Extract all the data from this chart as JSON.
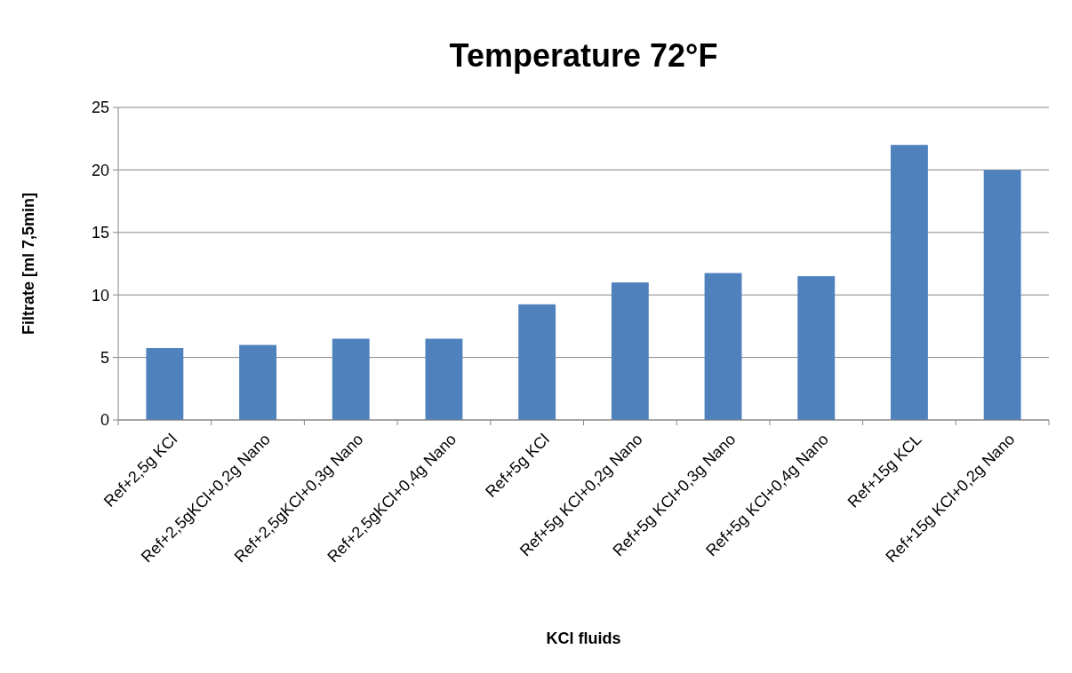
{
  "chart_data": {
    "type": "bar",
    "title": "Temperature 72°F",
    "xlabel": "KCl fluids",
    "ylabel": "Filtrate [ml 7,5min]",
    "categories": [
      "Ref+2,5g KCl",
      "Ref+2,5gKCl+0,2g Nano",
      "Ref+2,5gKCl+0,3g Nano",
      "Ref+2,5gKCl+0,4g Nano",
      "Ref+5g KCl",
      "Ref+5g KCl+0,2g Nano",
      "Ref+5g KCl+0,3g Nano",
      "Ref+5g KCl+0,4g Nano",
      "Ref+15g KCL",
      "Ref+15g KCl+0,2g Nano"
    ],
    "values": [
      5.75,
      6,
      6.5,
      6.5,
      9.25,
      11,
      11.75,
      11.5,
      22,
      20
    ],
    "color": "#4f81bd",
    "ylim": [
      0,
      25
    ],
    "yticks": [
      0,
      5,
      10,
      15,
      20,
      25
    ],
    "grid": "y"
  }
}
